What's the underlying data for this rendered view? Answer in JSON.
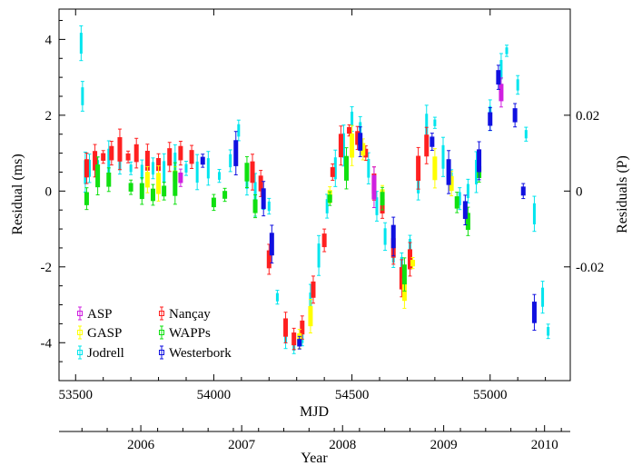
{
  "chart_data": {
    "type": "scatter",
    "title": "",
    "xlabel": "MJD",
    "xlim": [
      53440,
      55290
    ],
    "xticks": [
      "53500",
      "54000",
      "54500",
      "55000"
    ],
    "xtick_values": [
      53500,
      54000,
      54500,
      55000
    ],
    "ylabel": "Residual (ms)",
    "ylim": [
      -5.0,
      4.8
    ],
    "yticks": [
      "-4",
      "-2",
      "0",
      "2",
      "4"
    ],
    "ytick_values": [
      -4,
      -2,
      0,
      2,
      4
    ],
    "y2label": "Residuals (P)",
    "y2ticks": [
      "-0.02",
      "0",
      "0.02"
    ],
    "y2tick_values": [
      -0.02,
      0,
      0.02
    ],
    "y2_scale_ms_per_unit": 100,
    "x2label": "Year",
    "x2ticks": [
      "2006",
      "2007",
      "2008",
      "2009",
      "2010"
    ],
    "x2tick_mjd": [
      53736,
      54101,
      54466,
      54832,
      55197
    ],
    "legend_position": "bottom-left",
    "series": [
      {
        "name": "Jodrell",
        "color": "#00e5ee",
        "x": [
          53520,
          53525,
          53535,
          53550,
          53580,
          53620,
          53660,
          53700,
          53740,
          53780,
          53820,
          53860,
          53900,
          53940,
          53980,
          54020,
          54060,
          54090,
          54120,
          54150,
          54180,
          54200,
          54230,
          54260,
          54290,
          54320,
          54350,
          54380,
          54410,
          54440,
          54470,
          54500,
          54530,
          54560,
          54590,
          54620,
          54650,
          54680,
          54710,
          54740,
          54770,
          54800,
          54830,
          54860,
          54890,
          54920,
          54950,
          55000,
          55040,
          55060,
          55100,
          55130,
          55160,
          55190,
          55210
        ],
        "y": [
          3.9,
          2.5,
          0.5,
          0.6,
          0.7,
          0.8,
          0.7,
          0.6,
          0.5,
          0.6,
          0.5,
          0.7,
          0.6,
          0.5,
          0.6,
          0.4,
          0.8,
          1.6,
          0.3,
          -0.1,
          -0.3,
          -0.4,
          -2.8,
          -3.8,
          -4.1,
          -3.9,
          -3.0,
          -1.7,
          -0.4,
          0.6,
          1.2,
          1.9,
          1.6,
          0.6,
          -0.4,
          -1.2,
          -1.7,
          -1.9,
          -1.4,
          0.2,
          1.7,
          1.8,
          0.9,
          0.4,
          -0.2,
          0.0,
          0.5,
          2.0,
          3.2,
          3.7,
          2.8,
          1.5,
          -0.6,
          -2.8,
          -3.7
        ]
      },
      {
        "name": "Nançay",
        "color": "#ff2020",
        "x": [
          53540,
          53570,
          53600,
          53630,
          53660,
          53690,
          53720,
          53760,
          53800,
          53840,
          53880,
          53920,
          54140,
          54170,
          54200,
          54260,
          54290,
          54320,
          54360,
          54400,
          54430,
          54460,
          54490,
          54520,
          54550,
          54580,
          54610,
          54650,
          54680,
          54710,
          54740,
          54770
        ],
        "y": [
          0.6,
          0.8,
          0.9,
          1.0,
          1.1,
          0.9,
          1.0,
          0.8,
          0.7,
          0.9,
          1.0,
          0.9,
          0.5,
          0.2,
          -1.8,
          -3.6,
          -3.9,
          -3.6,
          -2.6,
          -1.3,
          0.5,
          1.2,
          1.6,
          1.4,
          1.0,
          0.2,
          -0.4,
          -1.5,
          -2.3,
          -1.8,
          0.6,
          1.2
        ]
      },
      {
        "name": "GASP",
        "color": "#ffff00",
        "x": [
          53760,
          53800,
          53860,
          54310,
          54350,
          54420,
          54500,
          54540,
          54610,
          54690,
          54720,
          54800,
          54860
        ],
        "y": [
          0.3,
          0.2,
          0.4,
          -3.9,
          -3.3,
          -0.1,
          1.2,
          1.1,
          -0.1,
          -2.6,
          -1.9,
          0.6,
          0.2
        ]
      },
      {
        "name": "WAPPs",
        "color": "#10e010",
        "x": [
          53540,
          53580,
          53620,
          53700,
          53740,
          53780,
          53820,
          53860,
          54000,
          54040,
          54120,
          54150,
          54420,
          54480,
          54610,
          54690,
          54880,
          54920,
          54960
        ],
        "y": [
          -0.2,
          0.4,
          0.3,
          0.1,
          0.0,
          -0.1,
          0.0,
          0.2,
          -0.3,
          -0.1,
          0.5,
          -0.4,
          -0.2,
          0.6,
          -0.2,
          -2.2,
          -0.3,
          -0.8,
          0.5
        ]
      },
      {
        "name": "ASP",
        "color": "#d020e0",
        "x": [
          53880,
          54580,
          55040
        ],
        "y": [
          0.35,
          0.1,
          2.6
        ]
      },
      {
        "name": "Westerbork",
        "color": "#1010e0",
        "x": [
          53960,
          54080,
          54180,
          54210,
          54310,
          54530,
          54650,
          54790,
          54850,
          54910,
          54960,
          55000,
          55030,
          55090,
          55120,
          55160
        ],
        "y": [
          0.8,
          1.0,
          -0.2,
          -1.4,
          -4.0,
          1.3,
          -1.2,
          1.3,
          0.5,
          -0.5,
          0.8,
          1.9,
          3.0,
          2.0,
          0.0,
          -3.2
        ]
      }
    ]
  }
}
